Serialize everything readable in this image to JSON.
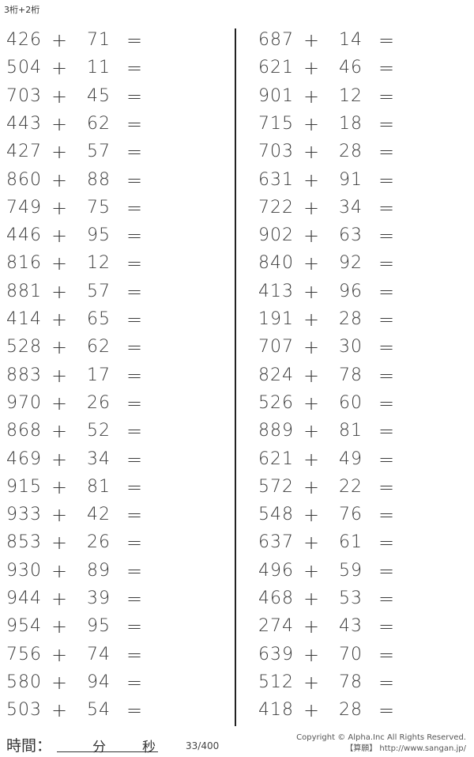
{
  "header": {
    "title": "3桁+2桁"
  },
  "operator": "+",
  "equals": "=",
  "left_problems": [
    [
      "426",
      "71"
    ],
    [
      "504",
      "11"
    ],
    [
      "703",
      "45"
    ],
    [
      "443",
      "62"
    ],
    [
      "427",
      "57"
    ],
    [
      "860",
      "88"
    ],
    [
      "749",
      "75"
    ],
    [
      "446",
      "95"
    ],
    [
      "816",
      "12"
    ],
    [
      "881",
      "57"
    ],
    [
      "414",
      "65"
    ],
    [
      "528",
      "62"
    ],
    [
      "883",
      "17"
    ],
    [
      "970",
      "26"
    ],
    [
      "868",
      "52"
    ],
    [
      "469",
      "34"
    ],
    [
      "915",
      "81"
    ],
    [
      "933",
      "42"
    ],
    [
      "853",
      "26"
    ],
    [
      "930",
      "89"
    ],
    [
      "944",
      "39"
    ],
    [
      "954",
      "95"
    ],
    [
      "756",
      "74"
    ],
    [
      "580",
      "94"
    ],
    [
      "503",
      "54"
    ]
  ],
  "right_problems": [
    [
      "687",
      "14"
    ],
    [
      "621",
      "46"
    ],
    [
      "901",
      "12"
    ],
    [
      "715",
      "18"
    ],
    [
      "703",
      "28"
    ],
    [
      "631",
      "91"
    ],
    [
      "722",
      "34"
    ],
    [
      "902",
      "63"
    ],
    [
      "840",
      "92"
    ],
    [
      "413",
      "96"
    ],
    [
      "191",
      "28"
    ],
    [
      "707",
      "30"
    ],
    [
      "824",
      "78"
    ],
    [
      "526",
      "60"
    ],
    [
      "889",
      "81"
    ],
    [
      "621",
      "49"
    ],
    [
      "572",
      "22"
    ],
    [
      "548",
      "76"
    ],
    [
      "637",
      "61"
    ],
    [
      "496",
      "59"
    ],
    [
      "468",
      "53"
    ],
    [
      "274",
      "43"
    ],
    [
      "639",
      "70"
    ],
    [
      "512",
      "78"
    ],
    [
      "418",
      "28"
    ]
  ],
  "footer": {
    "time_label": "時間：",
    "minutes_label": "分",
    "seconds_label": "秒",
    "page": "33/400",
    "copyright": "Copyright © Alpha.Inc All Rights Reserved.",
    "site": "【算願】 http://www.sangan.jp/"
  }
}
